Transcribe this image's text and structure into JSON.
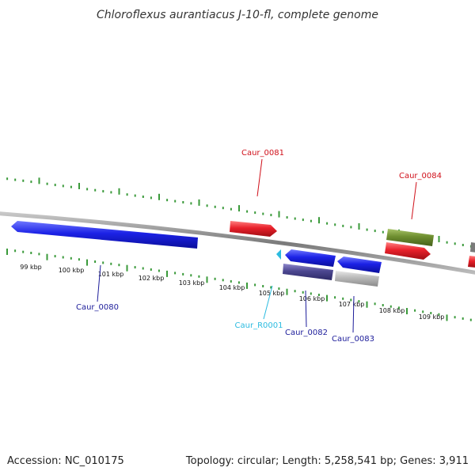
{
  "title": "Chloroflexus aurantiacus J-10-fl, complete genome",
  "footer": {
    "accession": "Accession: NC_010175",
    "summary": "Topology: circular; Length: 5,258,541 bp; Genes: 3,911"
  },
  "colors": {
    "backbone": "#8a8a8a",
    "tick": "#3a9a3a",
    "forward_gene": "#e8202a",
    "reverse_gene": "#1c22e6",
    "rrna": "#2bbbe0",
    "cds_category": "#6e8e30",
    "cds_dark": "#4c4790",
    "cds_grey": "#b8b8b8"
  },
  "ticks": [
    "99 kbp",
    "100 kbp",
    "101 kbp",
    "102 kbp",
    "103 kbp",
    "104 kbp",
    "105 kbp",
    "106 kbp",
    "107 kbp",
    "108 kbp",
    "109 kbp"
  ],
  "gene_labels": {
    "caur_0081": "Caur_0081",
    "caur_0084": "Caur_0084",
    "caur_0080": "Caur_0080",
    "caur_r0001": "Caur_R0001",
    "caur_0082": "Caur_0082",
    "caur_0083": "Caur_0083"
  }
}
